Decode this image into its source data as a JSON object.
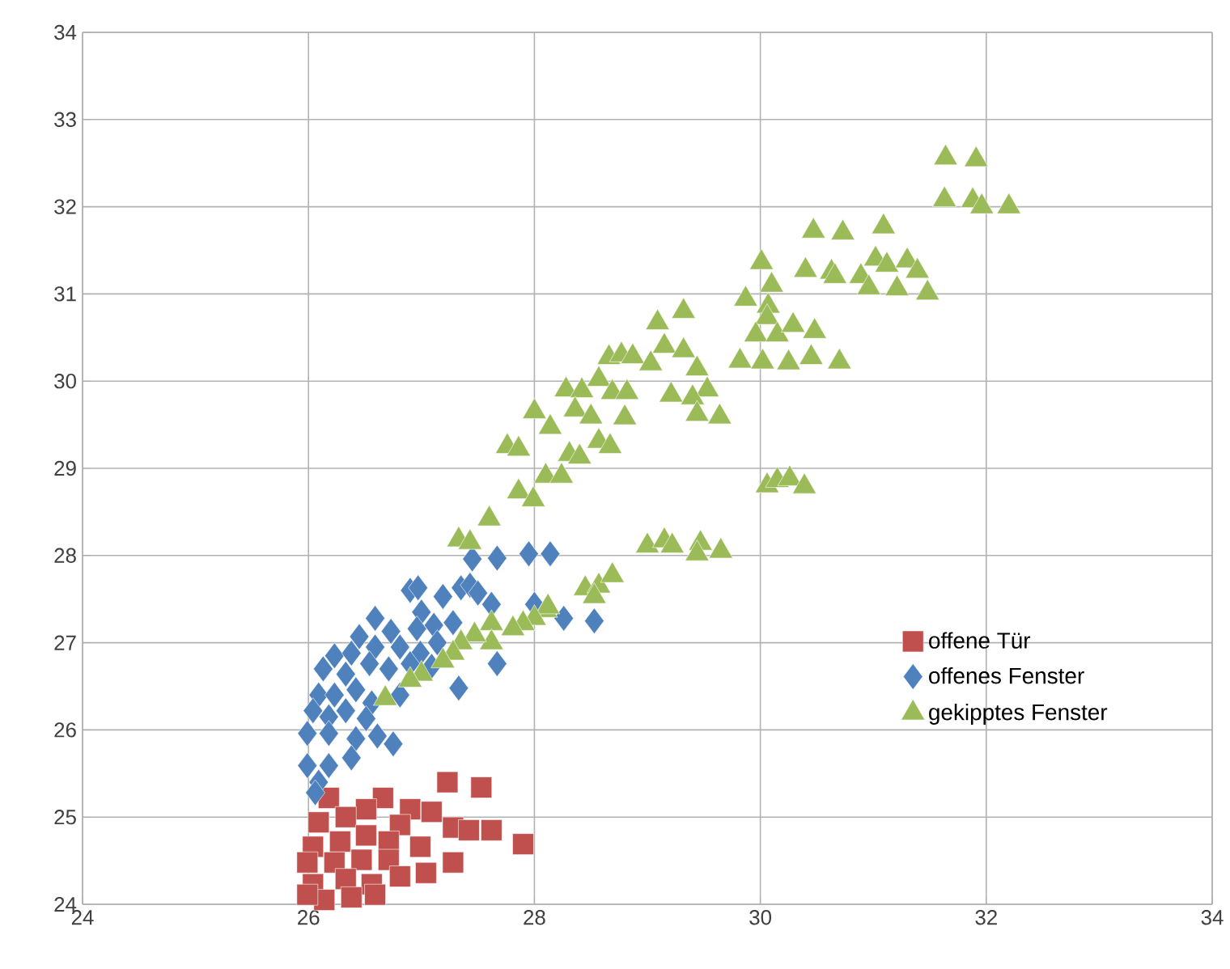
{
  "chart_data": {
    "type": "scatter",
    "xlim": [
      24,
      34
    ],
    "ylim": [
      24,
      34
    ],
    "xticks": [
      24,
      26,
      28,
      30,
      32,
      34
    ],
    "yticks": [
      24,
      25,
      26,
      27,
      28,
      29,
      30,
      31,
      32,
      33,
      34
    ],
    "grid": true,
    "legend": "right",
    "series": [
      {
        "name": "offene Tür",
        "color": "#c0504d",
        "marker": "square",
        "x": [
          27.23,
          27.53,
          26.18,
          26.66,
          26.51,
          26.9,
          27.09,
          26.09,
          26.33,
          26.81,
          27.28,
          27.42,
          27.62,
          27.9,
          26.04,
          26.28,
          26.51,
          26.71,
          26.99,
          25.99,
          26.23,
          26.47,
          26.71,
          27.04,
          27.28,
          27.04,
          26.04,
          26.33,
          26.56,
          26.81,
          26.14,
          26.38,
          26.59,
          25.99
        ],
        "values": [
          25.4,
          25.34,
          25.22,
          25.22,
          25.09,
          25.09,
          25.06,
          24.94,
          25.0,
          24.91,
          24.88,
          24.85,
          24.85,
          24.69,
          24.66,
          24.72,
          24.79,
          24.72,
          24.66,
          24.48,
          24.48,
          24.51,
          24.51,
          null,
          24.48,
          24.36,
          24.23,
          24.29,
          24.23,
          24.32,
          24.05,
          24.08,
          24.11,
          24.11
        ]
      },
      {
        "name": "offenes Fenster",
        "color": "#4f81bd",
        "marker": "diamond",
        "x": [
          27.45,
          27.67,
          27.95,
          28.14,
          26.9,
          26.97,
          27.19,
          27.35,
          27.43,
          27.5,
          27.62,
          28.0,
          28.26,
          28.53,
          27.0,
          26.59,
          26.45,
          26.73,
          26.96,
          27.11,
          27.28,
          27.14,
          26.23,
          26.38,
          26.59,
          26.81,
          26.99,
          27.67,
          26.13,
          26.33,
          26.54,
          26.71,
          26.9,
          27.09,
          27.33,
          26.09,
          26.23,
          26.42,
          26.56,
          26.81,
          26.04,
          26.18,
          26.33,
          26.51,
          25.99,
          26.18,
          26.42,
          26.61,
          26.75,
          25.99,
          26.18,
          26.38,
          26.09,
          26.06
        ],
        "values": [
          27.96,
          27.97,
          28.02,
          28.02,
          27.6,
          27.63,
          27.53,
          27.63,
          27.66,
          27.57,
          27.44,
          27.44,
          27.28,
          27.25,
          27.35,
          27.28,
          27.07,
          27.13,
          27.16,
          27.2,
          27.23,
          27.0,
          26.85,
          26.88,
          26.95,
          26.95,
          26.88,
          26.76,
          26.7,
          26.64,
          26.76,
          26.7,
          26.76,
          26.73,
          26.48,
          26.4,
          26.4,
          26.46,
          26.31,
          26.4,
          26.22,
          26.15,
          26.22,
          26.13,
          25.96,
          25.96,
          25.9,
          25.93,
          25.84,
          25.59,
          25.59,
          25.68,
          25.4,
          25.28
        ]
      },
      {
        "name": "gekipptes Fenster",
        "color": "#9bbb59",
        "marker": "triangle",
        "x": [
          31.64,
          31.91,
          31.63,
          31.88,
          31.96,
          32.2,
          30.47,
          30.73,
          31.09,
          30.01,
          30.4,
          30.63,
          30.66,
          30.89,
          30.96,
          31.02,
          31.12,
          31.3,
          31.39,
          31.21,
          31.48,
          30.1,
          29.87,
          30.07,
          30.06,
          29.96,
          30.15,
          30.29,
          30.48,
          29.82,
          30.02,
          30.25,
          30.45,
          30.7,
          29.09,
          29.32,
          29.15,
          29.32,
          28.66,
          28.77,
          28.87,
          29.03,
          29.44,
          29.53,
          28.28,
          28.42,
          28.57,
          28.69,
          28.82,
          29.21,
          29.4,
          29.44,
          29.64,
          28.36,
          28.5,
          28.8,
          28.0,
          28.14,
          27.76,
          27.86,
          28.57,
          28.67,
          28.31,
          28.4,
          28.1,
          28.24,
          27.86,
          27.99,
          27.6,
          30.06,
          30.15,
          30.26,
          30.39,
          29.0,
          29.15,
          29.22,
          29.47,
          29.65,
          29.44,
          28.45,
          28.57,
          28.69,
          28.1,
          27.33,
          27.43,
          28.53,
          28.12,
          28.0,
          27.9,
          27.81,
          27.62,
          27.62,
          27.47,
          27.35,
          27.28,
          27.19,
          27.0,
          26.9,
          26.68
        ],
        "values": [
          32.56,
          32.54,
          32.08,
          32.07,
          32.0,
          32.0,
          31.72,
          31.7,
          31.77,
          31.36,
          31.27,
          31.25,
          31.2,
          31.2,
          31.07,
          31.4,
          31.33,
          31.38,
          31.26,
          31.06,
          31.01,
          31.1,
          30.94,
          30.86,
          30.73,
          30.53,
          30.53,
          30.64,
          30.57,
          30.23,
          30.22,
          30.21,
          30.27,
          30.22,
          30.67,
          30.8,
          30.4,
          30.35,
          30.27,
          30.3,
          30.28,
          30.2,
          30.14,
          29.9,
          29.9,
          29.89,
          30.02,
          29.87,
          29.87,
          29.84,
          29.81,
          29.62,
          29.59,
          29.67,
          29.59,
          29.58,
          29.65,
          29.47,
          29.25,
          29.22,
          29.31,
          29.25,
          29.16,
          29.13,
          28.91,
          28.91,
          28.73,
          28.64,
          28.42,
          28.8,
          28.86,
          28.88,
          28.79,
          28.11,
          28.17,
          28.11,
          28.14,
          28.05,
          28.02,
          27.62,
          27.65,
          27.77,
          27.37,
          28.18,
          28.15,
          27.53,
          27.41,
          27.28,
          27.22,
          27.16,
          27.22,
          27.0,
          27.09,
          27.0,
          26.88,
          26.79,
          26.64,
          26.57,
          26.36
        ]
      }
    ]
  }
}
